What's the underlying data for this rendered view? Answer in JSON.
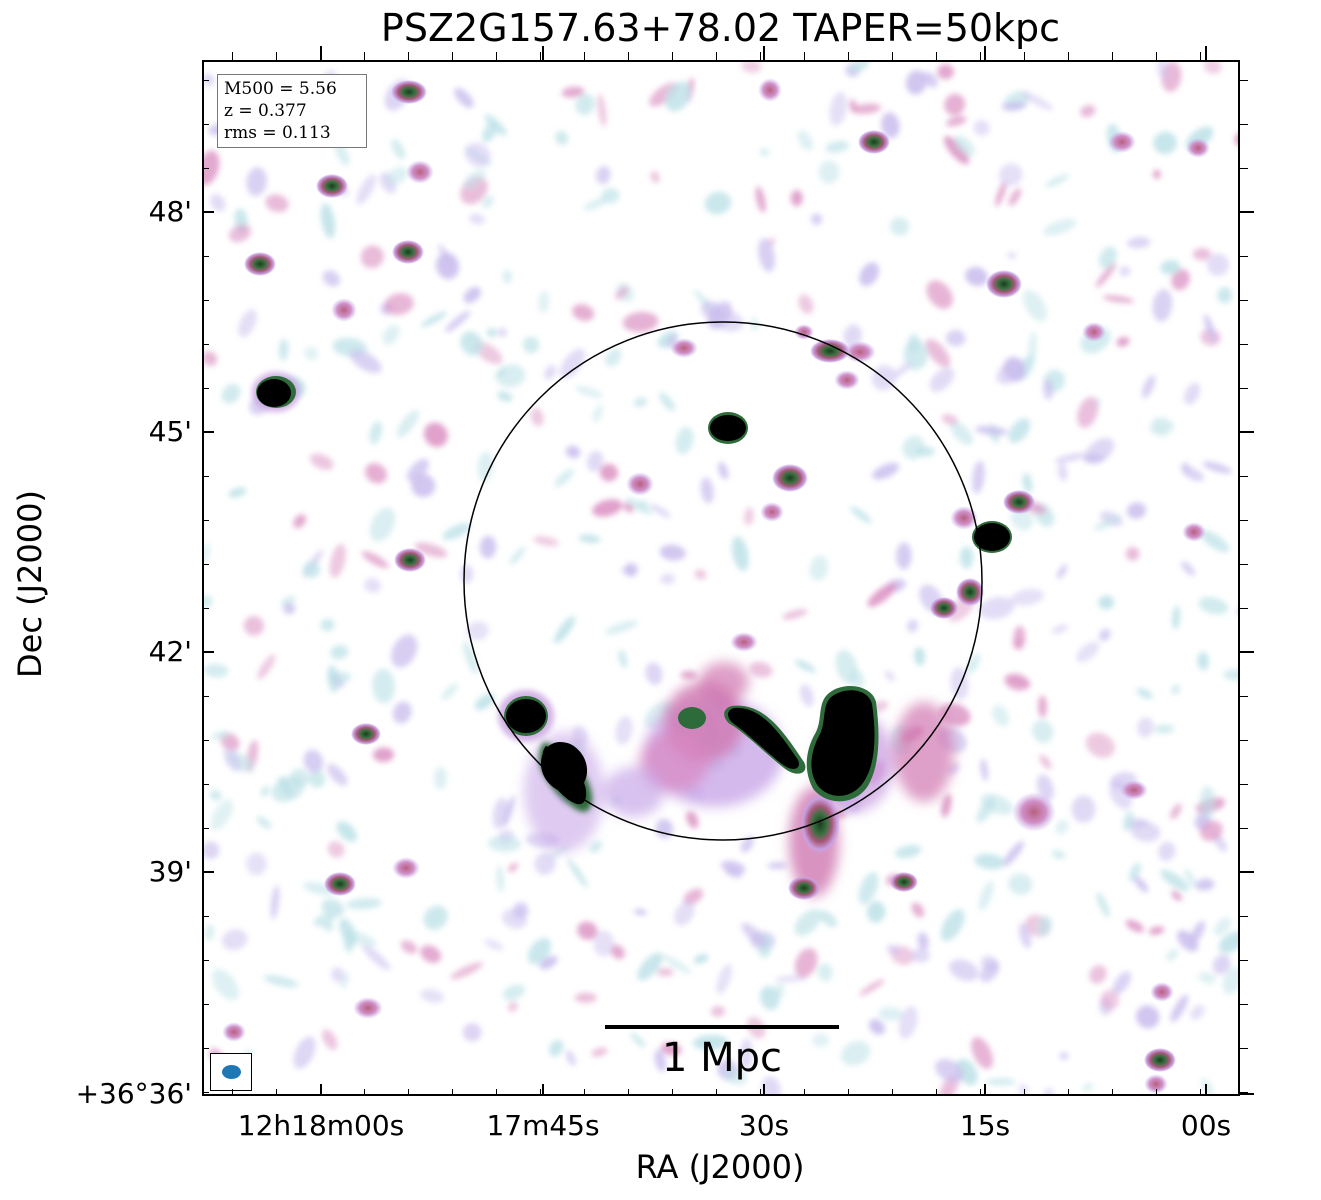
{
  "title": "PSZ2G157.63+78.02 TAPER=50kpc",
  "axes": {
    "xlabel": "RA (J2000)",
    "ylabel": "Dec (J2000)",
    "xticks": [
      "12h18m00s",
      "17m45s",
      "30s",
      "15s",
      "00s"
    ],
    "yticks": [
      "48'",
      "45'",
      "42'",
      "39'",
      "+36°36'"
    ]
  },
  "info": {
    "mass_line": "M500 = 5.56",
    "redshift_line": "z = 0.377",
    "rms_line": "rms = 0.113"
  },
  "scalebar": {
    "label": "1 Mpc"
  },
  "colors": {
    "faint_emission": "#a8d8e0",
    "low_emission": "#b8a8e8",
    "mid_emission": "#d070b0",
    "high_emission": "#2e6b3a",
    "saturated": "#000000",
    "beam": "#1f77b4",
    "circle": "#000000"
  }
}
